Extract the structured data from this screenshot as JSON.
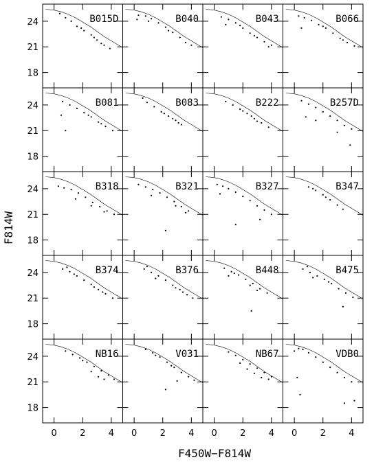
{
  "chart_data": {
    "type": "scatter",
    "layout": "5 rows x 4 columns of color-magnitude diagrams",
    "xlabel": "F450W−F814W",
    "ylabel": "F814W",
    "xlim": [
      -0.8,
      4.8
    ],
    "ylim": [
      26.0,
      16.2
    ],
    "y_inverted": true,
    "xticks": [
      0,
      2,
      4
    ],
    "yticks": [
      18,
      21,
      24
    ],
    "grid": false,
    "marker_color": "#000000",
    "fiducial_line": {
      "style": "thin line",
      "x": [
        -0.6,
        0.0,
        0.5,
        1.0,
        1.5,
        2.0,
        2.5,
        3.0,
        3.5,
        4.0,
        4.5,
        4.8
      ],
      "y": [
        25.4,
        25.3,
        25.1,
        24.8,
        24.4,
        23.9,
        23.4,
        22.8,
        22.2,
        21.7,
        21.2,
        20.9
      ]
    },
    "panels": [
      {
        "name": "B015D",
        "points": [
          [
            0.8,
            24.4
          ],
          [
            1.2,
            24.0
          ],
          [
            1.6,
            23.4
          ],
          [
            2.1,
            22.9
          ],
          [
            2.6,
            22.4
          ],
          [
            3.0,
            21.8
          ],
          [
            3.5,
            21.2
          ],
          [
            3.9,
            20.8
          ],
          [
            0.4,
            24.9
          ],
          [
            1.9,
            23.2
          ],
          [
            2.8,
            22.1
          ],
          [
            3.3,
            21.4
          ]
        ]
      },
      {
        "name": "B040",
        "points": [
          [
            0.3,
            24.7
          ],
          [
            0.8,
            24.6
          ],
          [
            1.2,
            24.3
          ],
          [
            1.7,
            23.8
          ],
          [
            2.2,
            23.3
          ],
          [
            2.7,
            22.7
          ],
          [
            3.2,
            22.1
          ],
          [
            3.6,
            21.5
          ],
          [
            4.0,
            21.2
          ],
          [
            0.2,
            24.2
          ],
          [
            1.0,
            24.0
          ],
          [
            2.4,
            22.9
          ]
        ]
      },
      {
        "name": "B043",
        "points": [
          [
            0.5,
            24.5
          ],
          [
            1.0,
            24.2
          ],
          [
            1.5,
            23.8
          ],
          [
            2.0,
            23.2
          ],
          [
            2.5,
            22.6
          ],
          [
            3.0,
            22.1
          ],
          [
            3.5,
            21.6
          ],
          [
            4.0,
            21.2
          ],
          [
            0.8,
            23.6
          ],
          [
            1.8,
            23.5
          ],
          [
            2.8,
            22.3
          ],
          [
            3.8,
            21.0
          ]
        ]
      },
      {
        "name": "B066",
        "points": [
          [
            0.3,
            24.6
          ],
          [
            0.7,
            24.4
          ],
          [
            1.2,
            24.1
          ],
          [
            1.7,
            23.6
          ],
          [
            2.2,
            23.2
          ],
          [
            2.7,
            22.6
          ],
          [
            3.2,
            22.0
          ],
          [
            3.7,
            21.5
          ],
          [
            4.2,
            21.1
          ],
          [
            0.5,
            23.2
          ],
          [
            2.0,
            23.4
          ],
          [
            3.4,
            21.8
          ]
        ]
      },
      {
        "name": "B081",
        "points": [
          [
            0.6,
            24.4
          ],
          [
            1.1,
            24.0
          ],
          [
            1.6,
            23.6
          ],
          [
            2.1,
            23.1
          ],
          [
            2.6,
            22.6
          ],
          [
            3.1,
            22.0
          ],
          [
            3.6,
            21.5
          ],
          [
            4.1,
            21.0
          ],
          [
            0.8,
            21.0
          ],
          [
            0.5,
            22.8
          ],
          [
            2.4,
            22.8
          ],
          [
            3.3,
            21.8
          ]
        ]
      },
      {
        "name": "B083",
        "points": [
          [
            0.9,
            24.3
          ],
          [
            1.4,
            23.8
          ],
          [
            1.9,
            23.2
          ],
          [
            2.4,
            22.7
          ],
          [
            2.9,
            22.2
          ],
          [
            3.3,
            21.7
          ],
          [
            0.6,
            24.8
          ],
          [
            2.1,
            23.0
          ],
          [
            2.7,
            22.4
          ],
          [
            3.1,
            21.9
          ]
        ]
      },
      {
        "name": "B222",
        "points": [
          [
            0.8,
            24.4
          ],
          [
            1.3,
            24.0
          ],
          [
            1.8,
            23.5
          ],
          [
            2.3,
            23.0
          ],
          [
            2.8,
            22.4
          ],
          [
            3.3,
            21.9
          ],
          [
            3.8,
            21.4
          ],
          [
            2.0,
            23.3
          ],
          [
            2.6,
            22.7
          ],
          [
            3.0,
            22.1
          ]
        ]
      },
      {
        "name": "B257D",
        "points": [
          [
            0.5,
            24.5
          ],
          [
            1.0,
            24.1
          ],
          [
            1.5,
            23.7
          ],
          [
            2.0,
            23.2
          ],
          [
            2.5,
            22.7
          ],
          [
            3.0,
            22.2
          ],
          [
            3.5,
            21.6
          ],
          [
            4.0,
            21.2
          ],
          [
            0.8,
            22.6
          ],
          [
            1.5,
            22.2
          ],
          [
            3.0,
            20.8
          ],
          [
            3.9,
            19.3
          ]
        ]
      },
      {
        "name": "B318",
        "points": [
          [
            0.3,
            24.3
          ],
          [
            0.7,
            24.1
          ],
          [
            1.2,
            23.9
          ],
          [
            1.7,
            23.5
          ],
          [
            2.2,
            23.0
          ],
          [
            2.7,
            22.4
          ],
          [
            3.2,
            21.9
          ],
          [
            3.7,
            21.4
          ],
          [
            4.2,
            21.0
          ],
          [
            1.5,
            22.8
          ],
          [
            2.6,
            22.0
          ],
          [
            3.5,
            21.3
          ]
        ]
      },
      {
        "name": "B321",
        "points": [
          [
            0.3,
            24.5
          ],
          [
            0.8,
            24.2
          ],
          [
            1.3,
            23.9
          ],
          [
            1.8,
            23.5
          ],
          [
            2.3,
            23.0
          ],
          [
            2.8,
            22.5
          ],
          [
            3.3,
            21.9
          ],
          [
            3.8,
            21.4
          ],
          [
            2.2,
            19.1
          ],
          [
            1.2,
            23.2
          ],
          [
            2.9,
            22.0
          ],
          [
            3.6,
            21.2
          ]
        ]
      },
      {
        "name": "B327",
        "points": [
          [
            0.2,
            24.5
          ],
          [
            0.6,
            24.3
          ],
          [
            1.0,
            24.0
          ],
          [
            1.5,
            23.6
          ],
          [
            2.0,
            23.1
          ],
          [
            2.5,
            22.6
          ],
          [
            3.0,
            22.0
          ],
          [
            3.5,
            21.5
          ],
          [
            4.0,
            21.0
          ],
          [
            1.5,
            19.8
          ],
          [
            3.2,
            20.4
          ],
          [
            0.4,
            23.4
          ]
        ]
      },
      {
        "name": "B347",
        "points": [
          [
            1.0,
            24.2
          ],
          [
            1.5,
            23.8
          ],
          [
            2.0,
            23.3
          ],
          [
            2.5,
            22.7
          ],
          [
            3.0,
            22.1
          ],
          [
            3.4,
            21.6
          ],
          [
            1.3,
            24.0
          ],
          [
            2.2,
            23.0
          ]
        ]
      },
      {
        "name": "B374",
        "points": [
          [
            0.6,
            24.4
          ],
          [
            1.1,
            24.1
          ],
          [
            1.6,
            23.6
          ],
          [
            2.1,
            23.1
          ],
          [
            2.6,
            22.6
          ],
          [
            3.1,
            22.0
          ],
          [
            3.6,
            21.5
          ],
          [
            4.1,
            21.0
          ],
          [
            1.4,
            23.8
          ],
          [
            2.8,
            22.3
          ],
          [
            3.4,
            21.7
          ],
          [
            0.9,
            24.6
          ]
        ]
      },
      {
        "name": "B376",
        "points": [
          [
            0.7,
            24.4
          ],
          [
            1.2,
            24.0
          ],
          [
            1.7,
            23.6
          ],
          [
            2.2,
            23.1
          ],
          [
            2.7,
            22.5
          ],
          [
            3.2,
            22.0
          ],
          [
            3.7,
            21.4
          ],
          [
            4.1,
            21.0
          ],
          [
            1.5,
            23.3
          ],
          [
            2.9,
            22.2
          ],
          [
            3.4,
            21.7
          ],
          [
            0.9,
            24.7
          ]
        ]
      },
      {
        "name": "B448",
        "points": [
          [
            0.7,
            24.5
          ],
          [
            1.2,
            24.1
          ],
          [
            1.7,
            23.7
          ],
          [
            2.2,
            23.2
          ],
          [
            2.7,
            22.7
          ],
          [
            3.2,
            22.1
          ],
          [
            3.7,
            21.6
          ],
          [
            2.6,
            19.5
          ],
          [
            1.0,
            23.6
          ],
          [
            2.5,
            22.5
          ],
          [
            3.0,
            21.9
          ],
          [
            1.4,
            23.9
          ]
        ]
      },
      {
        "name": "B475",
        "points": [
          [
            0.6,
            24.4
          ],
          [
            1.1,
            24.0
          ],
          [
            1.6,
            23.6
          ],
          [
            2.1,
            23.2
          ],
          [
            2.6,
            22.7
          ],
          [
            3.1,
            22.1
          ],
          [
            3.6,
            21.6
          ],
          [
            4.1,
            21.1
          ],
          [
            3.4,
            20.0
          ],
          [
            1.3,
            23.4
          ],
          [
            2.4,
            22.9
          ],
          [
            0.9,
            24.7
          ]
        ]
      },
      {
        "name": "NB16",
        "points": [
          [
            0.8,
            24.6
          ],
          [
            1.3,
            24.2
          ],
          [
            1.8,
            23.8
          ],
          [
            2.3,
            23.3
          ],
          [
            2.8,
            22.8
          ],
          [
            3.3,
            22.3
          ],
          [
            3.8,
            21.8
          ],
          [
            4.2,
            21.3
          ],
          [
            2.6,
            22.2
          ],
          [
            3.1,
            21.6
          ],
          [
            2.0,
            23.5
          ],
          [
            3.5,
            21.3
          ]
        ]
      },
      {
        "name": "V031",
        "points": [
          [
            0.8,
            24.8
          ],
          [
            1.3,
            24.4
          ],
          [
            1.8,
            23.9
          ],
          [
            2.3,
            23.3
          ],
          [
            2.8,
            22.7
          ],
          [
            3.3,
            22.1
          ],
          [
            3.8,
            21.6
          ],
          [
            4.2,
            21.2
          ],
          [
            2.2,
            20.1
          ],
          [
            3.0,
            21.1
          ],
          [
            1.5,
            24.1
          ],
          [
            2.6,
            22.9
          ]
        ]
      },
      {
        "name": "NB67",
        "points": [
          [
            1.0,
            24.5
          ],
          [
            1.5,
            24.1
          ],
          [
            2.0,
            23.6
          ],
          [
            2.5,
            23.1
          ],
          [
            3.0,
            22.6
          ],
          [
            3.5,
            22.1
          ],
          [
            4.0,
            21.6
          ],
          [
            2.3,
            22.5
          ],
          [
            2.8,
            22.0
          ],
          [
            3.3,
            21.5
          ],
          [
            1.8,
            23.2
          ],
          [
            3.8,
            21.3
          ]
        ]
      },
      {
        "name": "VDB0",
        "points": [
          [
            0.0,
            24.6
          ],
          [
            0.3,
            24.9
          ],
          [
            0.6,
            24.8
          ],
          [
            1.0,
            24.4
          ],
          [
            1.5,
            23.9
          ],
          [
            2.0,
            23.3
          ],
          [
            2.5,
            22.7
          ],
          [
            3.0,
            22.1
          ],
          [
            3.5,
            21.5
          ],
          [
            4.0,
            21.0
          ],
          [
            0.2,
            21.5
          ],
          [
            0.4,
            19.5
          ],
          [
            3.5,
            18.5
          ],
          [
            4.2,
            18.8
          ]
        ]
      }
    ]
  }
}
